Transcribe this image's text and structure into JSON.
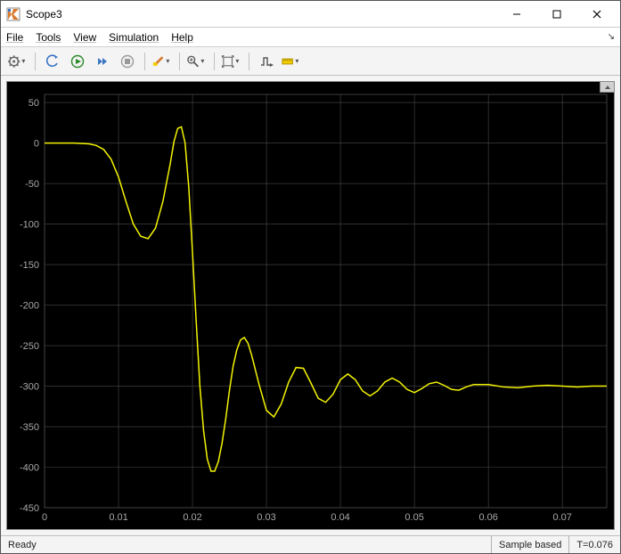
{
  "window": {
    "title": "Scope3"
  },
  "menu": {
    "items": [
      "File",
      "Tools",
      "View",
      "Simulation",
      "Help"
    ]
  },
  "toolbar": {
    "icons": [
      "gear",
      "back",
      "play",
      "step",
      "stop",
      "highlight",
      "zoom",
      "pan",
      "scale",
      "cursor",
      "ruler"
    ]
  },
  "status": {
    "ready": "Ready",
    "sample": "Sample based",
    "time": "T=0.076"
  },
  "chart": {
    "type": "line",
    "background_color": "#000000",
    "grid_color": "#4a4a4a",
    "axis_label_color": "#a8a8a8",
    "line_color": "#f4f400",
    "line_width": 1.5,
    "xlim": [
      0,
      0.076
    ],
    "ylim": [
      -450,
      60
    ],
    "xticks": [
      0,
      0.01,
      0.02,
      0.03,
      0.04,
      0.05,
      0.06,
      0.07
    ],
    "yticks": [
      -450,
      -400,
      -350,
      -300,
      -250,
      -200,
      -150,
      -100,
      -50,
      0,
      50
    ],
    "xtick_labels": [
      "0",
      "0.01",
      "0.02",
      "0.03",
      "0.04",
      "0.05",
      "0.06",
      "0.07"
    ],
    "ytick_labels": [
      "-450",
      "-400",
      "-350",
      "-300",
      "-250",
      "-200",
      "-150",
      "-100",
      "-50",
      "0",
      "50"
    ],
    "label_fontsize": 11,
    "series": [
      {
        "x": [
          0,
          0.002,
          0.004,
          0.006,
          0.007,
          0.008,
          0.009,
          0.01,
          0.011,
          0.012,
          0.013,
          0.014,
          0.015,
          0.016,
          0.017,
          0.0175,
          0.018,
          0.0185,
          0.019,
          0.0195,
          0.02,
          0.0205,
          0.021,
          0.0215,
          0.022,
          0.0225,
          0.023,
          0.0235,
          0.024,
          0.0245,
          0.025,
          0.0255,
          0.026,
          0.0265,
          0.027,
          0.0275,
          0.028,
          0.029,
          0.03,
          0.031,
          0.032,
          0.033,
          0.034,
          0.035,
          0.036,
          0.037,
          0.038,
          0.039,
          0.04,
          0.041,
          0.042,
          0.043,
          0.044,
          0.045,
          0.046,
          0.047,
          0.048,
          0.049,
          0.05,
          0.051,
          0.052,
          0.053,
          0.054,
          0.055,
          0.056,
          0.057,
          0.058,
          0.06,
          0.062,
          0.064,
          0.066,
          0.068,
          0.07,
          0.072,
          0.074,
          0.076
        ],
        "y": [
          0,
          0,
          0,
          -1,
          -3,
          -8,
          -20,
          -42,
          -72,
          -100,
          -115,
          -118,
          -105,
          -72,
          -25,
          2,
          18,
          20,
          0,
          -55,
          -135,
          -220,
          -300,
          -355,
          -390,
          -405,
          -405,
          -393,
          -370,
          -340,
          -305,
          -275,
          -255,
          -243,
          -240,
          -247,
          -262,
          -298,
          -330,
          -338,
          -322,
          -295,
          -277,
          -278,
          -296,
          -315,
          -320,
          -310,
          -292,
          -285,
          -292,
          -306,
          -312,
          -306,
          -295,
          -290,
          -295,
          -304,
          -308,
          -303,
          -297,
          -295,
          -299,
          -304,
          -305,
          -301,
          -298,
          -298,
          -301,
          -302,
          -300,
          -299,
          -300,
          -301,
          -300,
          -300
        ]
      }
    ]
  }
}
